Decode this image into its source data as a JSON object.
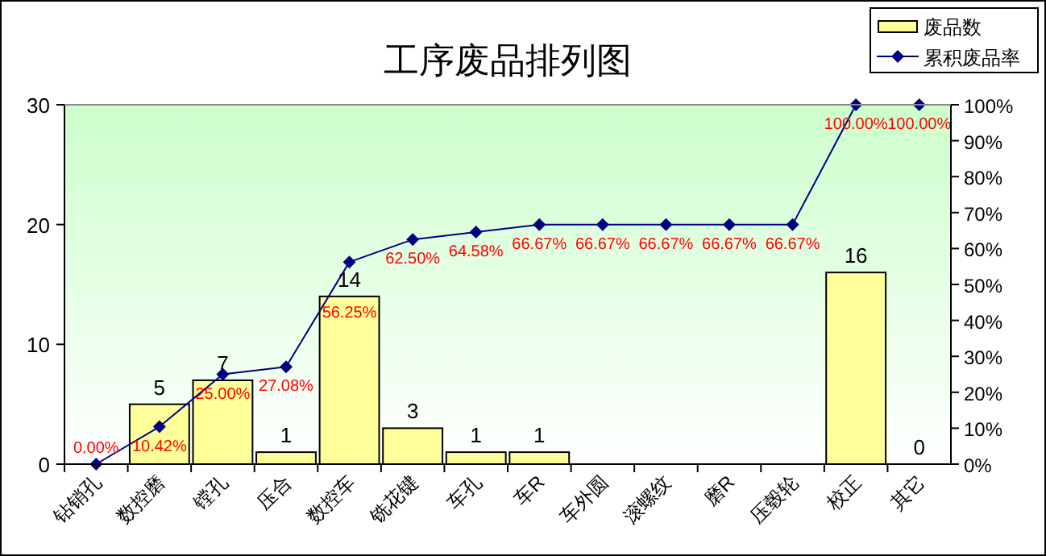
{
  "chart_data": {
    "type": "bar",
    "title": "工序废品排列图",
    "categories": [
      "钻销孔",
      "数控磨",
      "镗孔",
      "压合",
      "数控车",
      "铣花键",
      "车孔",
      "车R",
      "车外圆",
      "滚螺纹",
      "磨R",
      "压毂轮",
      "校正",
      "其它"
    ],
    "series": [
      {
        "name": "废品数",
        "color": "#ffff99",
        "values": [
          null,
          5,
          7,
          1,
          14,
          3,
          1,
          1,
          null,
          null,
          null,
          null,
          16,
          0
        ],
        "value_labels": [
          null,
          "5",
          "7",
          "1",
          "14",
          "3",
          "1",
          "1",
          null,
          null,
          null,
          null,
          "16",
          "0"
        ]
      },
      {
        "name": "累积废品率",
        "type": "line",
        "axis": "y2",
        "color": "#000080",
        "marker": "diamond",
        "values": [
          0,
          10.42,
          25,
          27.08,
          56.25,
          62.5,
          64.58,
          66.67,
          66.67,
          66.67,
          66.67,
          66.67,
          100,
          100
        ],
        "value_labels": [
          "0.00%",
          "10.42%",
          "25.00%",
          "27.08%",
          "56.25%",
          "62.50%",
          "64.58%",
          "66.67%",
          "66.67%",
          "66.67%",
          "66.67%",
          "66.67%",
          "100.00%",
          "100.00%"
        ]
      }
    ],
    "ylim": [
      0,
      30
    ],
    "yticks": [
      0,
      10,
      20,
      30
    ],
    "y2lim": [
      0,
      100
    ],
    "y2ticks": [
      {
        "value": 0,
        "label": "0%"
      },
      {
        "value": 10,
        "label": "10%"
      },
      {
        "value": 20,
        "label": "20%"
      },
      {
        "value": 30,
        "label": "30%"
      },
      {
        "value": 40,
        "label": "40%"
      },
      {
        "value": 50,
        "label": "50%"
      },
      {
        "value": 60,
        "label": "60%"
      },
      {
        "value": 70,
        "label": "70%"
      },
      {
        "value": 80,
        "label": "80%"
      },
      {
        "value": 90,
        "label": "90%"
      },
      {
        "value": 100,
        "label": "100%"
      }
    ],
    "grid": false,
    "legend": "top right"
  }
}
